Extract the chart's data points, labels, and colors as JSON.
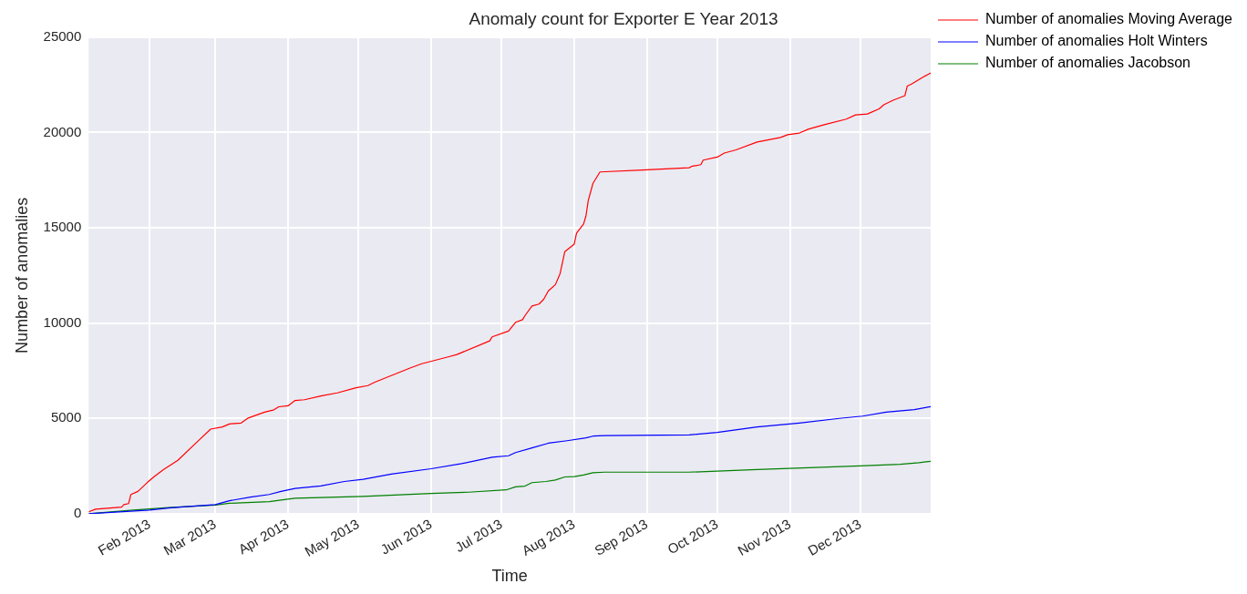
{
  "chart_data": {
    "type": "line",
    "title": "Anomaly count for Exporter E Year 2013",
    "xlabel": "Time",
    "ylabel": "Number of anomalies",
    "xlim": [
      "2013-01-06",
      "2013-12-31"
    ],
    "xticks": [
      {
        "value": "2013-02-01",
        "label": "Feb 2013"
      },
      {
        "value": "2013-03-01",
        "label": "Mar 2013"
      },
      {
        "value": "2013-04-01",
        "label": "Apr 2013"
      },
      {
        "value": "2013-05-01",
        "label": "May 2013"
      },
      {
        "value": "2013-06-01",
        "label": "Jun 2013"
      },
      {
        "value": "2013-07-01",
        "label": "Jul 2013"
      },
      {
        "value": "2013-08-01",
        "label": "Aug 2013"
      },
      {
        "value": "2013-09-01",
        "label": "Sep 2013"
      },
      {
        "value": "2013-10-01",
        "label": "Oct 2013"
      },
      {
        "value": "2013-11-01",
        "label": "Nov 2013"
      },
      {
        "value": "2013-12-01",
        "label": "Dec 2013"
      }
    ],
    "ylim": [
      0,
      25000
    ],
    "yticks": [
      0,
      5000,
      10000,
      15000,
      20000,
      25000
    ],
    "grid": true,
    "legend": "top right",
    "marker": "none",
    "line_style": "solid",
    "series": [
      {
        "name": "Number of anomalies Moving Average",
        "color": "#ff0000",
        "x": [
          "2013-01-06",
          "2013-01-09",
          "2013-01-20",
          "2013-01-21",
          "2013-01-23",
          "2013-01-24",
          "2013-01-27",
          "2013-01-31",
          "2013-02-03",
          "2013-02-07",
          "2013-02-13",
          "2013-02-22",
          "2013-02-27",
          "2013-03-04",
          "2013-03-07",
          "2013-03-12",
          "2013-03-15",
          "2013-03-22",
          "2013-03-26",
          "2013-03-28",
          "2013-04-01",
          "2013-04-04",
          "2013-04-08",
          "2013-04-15",
          "2013-04-22",
          "2013-04-30",
          "2013-05-05",
          "2013-05-08",
          "2013-05-23",
          "2013-05-28",
          "2013-06-09",
          "2013-06-12",
          "2013-06-26",
          "2013-06-27",
          "2013-07-04",
          "2013-07-07",
          "2013-07-10",
          "2013-07-11",
          "2013-07-14",
          "2013-07-17",
          "2013-07-19",
          "2013-07-21",
          "2013-07-24",
          "2013-07-26",
          "2013-07-28",
          "2013-08-01",
          "2013-08-02",
          "2013-08-05",
          "2013-08-06",
          "2013-08-07",
          "2013-08-09",
          "2013-08-12",
          "2013-08-30",
          "2013-09-19",
          "2013-09-20",
          "2013-09-24",
          "2013-09-25",
          "2013-10-01",
          "2013-10-04",
          "2013-10-09",
          "2013-10-18",
          "2013-10-28",
          "2013-10-31",
          "2013-11-05",
          "2013-11-09",
          "2013-11-16",
          "2013-11-25",
          "2013-11-29",
          "2013-12-04",
          "2013-12-09",
          "2013-12-11",
          "2013-12-15",
          "2013-12-20",
          "2013-12-21",
          "2013-12-23",
          "2013-12-28",
          "2013-12-31"
        ],
        "values": [
          100,
          240,
          350,
          480,
          530,
          1010,
          1170,
          1640,
          1950,
          2320,
          2800,
          3860,
          4440,
          4550,
          4710,
          4760,
          5020,
          5330,
          5450,
          5610,
          5660,
          5940,
          5980,
          6180,
          6340,
          6610,
          6720,
          6900,
          7640,
          7870,
          8250,
          8350,
          9070,
          9280,
          9580,
          10040,
          10180,
          10390,
          10900,
          11000,
          11250,
          11690,
          12020,
          12600,
          13750,
          14140,
          14720,
          15200,
          15610,
          16430,
          17330,
          17930,
          18030,
          18150,
          18220,
          18310,
          18550,
          18710,
          18920,
          19090,
          19500,
          19740,
          19880,
          19970,
          20180,
          20420,
          20700,
          20920,
          20970,
          21240,
          21450,
          21690,
          21930,
          22430,
          22550,
          22920,
          23120
        ]
      },
      {
        "name": "Number of anomalies Holt Winters",
        "color": "#0000ff",
        "x": [
          "2013-01-06",
          "2013-02-01",
          "2013-02-09",
          "2013-02-14",
          "2013-03-01",
          "2013-03-07",
          "2013-03-16",
          "2013-03-24",
          "2013-03-29",
          "2013-04-04",
          "2013-04-15",
          "2013-04-25",
          "2013-05-03",
          "2013-05-15",
          "2013-06-01",
          "2013-06-14",
          "2013-06-27",
          "2013-07-04",
          "2013-07-07",
          "2013-07-14",
          "2013-07-21",
          "2013-07-29",
          "2013-08-06",
          "2013-08-09",
          "2013-08-14",
          "2013-09-19",
          "2013-10-01",
          "2013-10-18",
          "2013-11-05",
          "2013-11-22",
          "2013-12-02",
          "2013-12-12",
          "2013-12-24",
          "2013-12-31"
        ],
        "values": [
          0,
          190,
          300,
          350,
          480,
          680,
          870,
          1010,
          1170,
          1330,
          1460,
          1690,
          1800,
          2080,
          2360,
          2630,
          2960,
          3040,
          3210,
          3450,
          3700,
          3830,
          3980,
          4070,
          4100,
          4130,
          4270,
          4550,
          4760,
          5000,
          5120,
          5330,
          5460,
          5620
        ]
      },
      {
        "name": "Number of anomalies Jacobson",
        "color": "#008000",
        "x": [
          "2013-01-06",
          "2013-01-25",
          "2013-02-09",
          "2013-03-01",
          "2013-03-07",
          "2013-03-24",
          "2013-03-29",
          "2013-04-04",
          "2013-05-03",
          "2013-06-01",
          "2013-06-17",
          "2013-07-03",
          "2013-07-07",
          "2013-07-11",
          "2013-07-14",
          "2013-07-20",
          "2013-07-24",
          "2013-07-28",
          "2013-08-01",
          "2013-08-05",
          "2013-08-09",
          "2013-08-14",
          "2013-09-19",
          "2013-10-18",
          "2013-12-01",
          "2013-12-18",
          "2013-12-26",
          "2013-12-31"
        ],
        "values": [
          0,
          190,
          320,
          450,
          550,
          630,
          720,
          810,
          910,
          1060,
          1130,
          1250,
          1410,
          1450,
          1630,
          1690,
          1770,
          1930,
          1950,
          2030,
          2150,
          2180,
          2180,
          2320,
          2510,
          2590,
          2680,
          2750
        ]
      }
    ]
  }
}
